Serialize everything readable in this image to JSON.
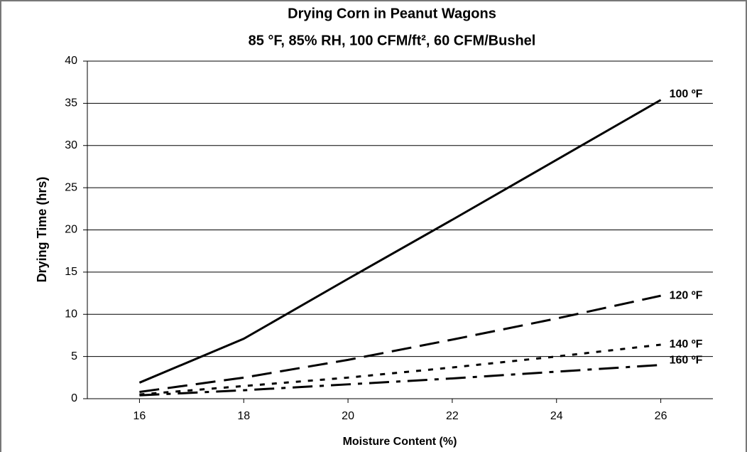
{
  "chart_data": {
    "type": "line",
    "title": "Drying Corn in Peanut Wagons",
    "subtitle": "85 °F, 85% RH, 100 CFM/ft², 60 CFM/Bushel",
    "x_label": "Moisture Content (%)",
    "y_label": "Drying Time (hrs)",
    "x": [
      16,
      18,
      20,
      22,
      24,
      26
    ],
    "series": [
      {
        "name": "100 ºF",
        "color": "#000000",
        "line_style": "solid",
        "values": [
          1.9,
          7.1,
          14.2,
          21.2,
          28.3,
          35.4
        ]
      },
      {
        "name": "120 ºF",
        "color": "#000000",
        "line_style": "dashed",
        "values": [
          0.8,
          2.5,
          4.6,
          7.0,
          9.5,
          12.2
        ]
      },
      {
        "name": "140 ºF",
        "color": "#000000",
        "line_style": "dotted",
        "values": [
          0.5,
          1.5,
          2.5,
          3.7,
          5.0,
          6.4
        ]
      },
      {
        "name": "160 ºF",
        "color": "#000000",
        "line_style": "dashdot",
        "values": [
          0.4,
          1.0,
          1.7,
          2.4,
          3.2,
          4.0
        ]
      }
    ],
    "xlim": [
      15,
      27
    ],
    "xticks": [
      16,
      18,
      20,
      22,
      24,
      26
    ],
    "ylim": [
      0,
      40
    ],
    "yticks": [
      0,
      5,
      10,
      15,
      20,
      25,
      30,
      35,
      40
    ],
    "grid": true
  }
}
